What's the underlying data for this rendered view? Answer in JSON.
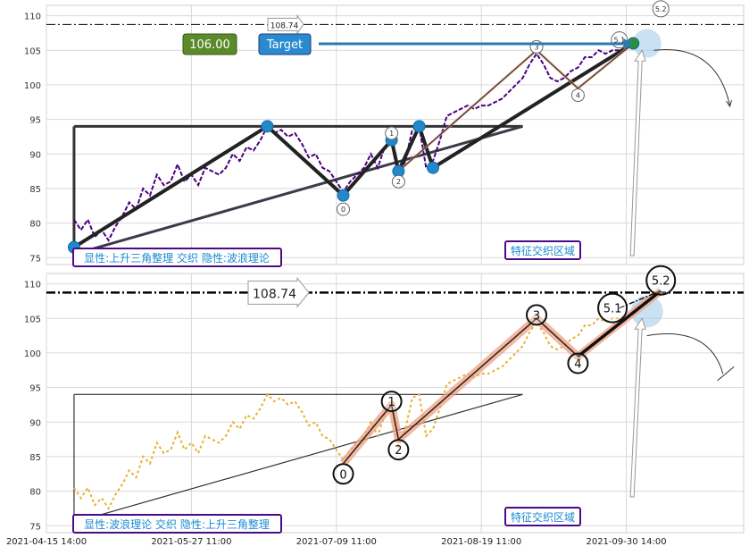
{
  "chart_data": [
    {
      "type": "line",
      "panel": "top",
      "ylim": [
        74,
        111.5
      ],
      "yticks": [
        75,
        80,
        85,
        90,
        95,
        100,
        105,
        110
      ],
      "grid": true,
      "price_color": "#4b0082",
      "price_series": [
        [
          0,
          80.5
        ],
        [
          1,
          79
        ],
        [
          2,
          80.5
        ],
        [
          3,
          78
        ],
        [
          4,
          79
        ],
        [
          5,
          77.5
        ],
        [
          6,
          79.5
        ],
        [
          7,
          81
        ],
        [
          8,
          83
        ],
        [
          9,
          82
        ],
        [
          10,
          85
        ],
        [
          11,
          84
        ],
        [
          12,
          87
        ],
        [
          13,
          85.5
        ],
        [
          14,
          86
        ],
        [
          15,
          88.5
        ],
        [
          16,
          86
        ],
        [
          17,
          87
        ],
        [
          18,
          85.5
        ],
        [
          19,
          88
        ],
        [
          20,
          87.5
        ],
        [
          21,
          87
        ],
        [
          22,
          88
        ],
        [
          23,
          90
        ],
        [
          24,
          89
        ],
        [
          25,
          91
        ],
        [
          26,
          90.5
        ],
        [
          27,
          92
        ],
        [
          28,
          94
        ],
        [
          29,
          93
        ],
        [
          30,
          93.5
        ],
        [
          31,
          92.5
        ],
        [
          32,
          93
        ],
        [
          33,
          91.5
        ],
        [
          34,
          89.5
        ],
        [
          35,
          90
        ],
        [
          36,
          88
        ],
        [
          37,
          87.5
        ],
        [
          38,
          86
        ],
        [
          39,
          84.5
        ],
        [
          40,
          86
        ],
        [
          41,
          87
        ],
        [
          42,
          88
        ],
        [
          43,
          90
        ],
        [
          44,
          88
        ],
        [
          45,
          91
        ],
        [
          46,
          92
        ],
        [
          47,
          86.5
        ],
        [
          48,
          89
        ],
        [
          49,
          93.5
        ],
        [
          50,
          94
        ],
        [
          51,
          88
        ],
        [
          52,
          89
        ],
        [
          53,
          92
        ],
        [
          54,
          95.5
        ],
        [
          55,
          96
        ],
        [
          56,
          96.5
        ],
        [
          57,
          97
        ],
        [
          58,
          96.5
        ],
        [
          59,
          97
        ],
        [
          60,
          97
        ],
        [
          61,
          97.5
        ],
        [
          62,
          98
        ],
        [
          63,
          99
        ],
        [
          64,
          100
        ],
        [
          65,
          101
        ],
        [
          66,
          103
        ],
        [
          67,
          104.5
        ],
        [
          68,
          103
        ],
        [
          69,
          101
        ],
        [
          70,
          100.5
        ],
        [
          71,
          101
        ],
        [
          72,
          102
        ],
        [
          73,
          102.5
        ],
        [
          74,
          104
        ],
        [
          75,
          104
        ],
        [
          76,
          105
        ],
        [
          77,
          104.5
        ],
        [
          78,
          105
        ],
        [
          79,
          105
        ]
      ],
      "pattern_points": [
        {
          "x": 0,
          "y": 76.5
        },
        {
          "x": 28,
          "y": 94
        },
        {
          "x": 39,
          "y": 84
        },
        {
          "x": 46,
          "y": 92
        },
        {
          "x": 47,
          "y": 87.5
        },
        {
          "x": 50,
          "y": 94
        },
        {
          "x": 52,
          "y": 88
        },
        {
          "x": 81,
          "y": 106
        }
      ],
      "wave_labels": [
        {
          "label": "0",
          "x": 39,
          "y": 82
        },
        {
          "label": "1",
          "x": 46,
          "y": 93
        },
        {
          "label": "2",
          "x": 47,
          "y": 86
        },
        {
          "label": "3",
          "x": 67,
          "y": 105.5
        },
        {
          "label": "4",
          "x": 73,
          "y": 98.5
        },
        {
          "label": "5.1",
          "x": 79,
          "y": 106.5
        },
        {
          "label": "5.2",
          "x": 85,
          "y": 111
        }
      ],
      "hline": 108.74,
      "hline_label": "108.74",
      "target_value": "106.00",
      "target_label": "Target",
      "caption": "显性:上升三角整理 交织 隐性:波浪理论",
      "zone_label": "特征交织区域"
    },
    {
      "type": "line",
      "panel": "bottom",
      "ylim": [
        74,
        111.5
      ],
      "yticks": [
        75,
        80,
        85,
        90,
        95,
        100,
        105,
        110
      ],
      "grid": true,
      "price_color": "#e8b030",
      "wave_points": [
        {
          "x": 39,
          "y": 84
        },
        {
          "x": 46,
          "y": 92.5
        },
        {
          "x": 47,
          "y": 87.5
        },
        {
          "x": 67,
          "y": 105
        },
        {
          "x": 73,
          "y": 99.5
        },
        {
          "x": 85,
          "y": 109
        }
      ],
      "wave_labels": [
        {
          "label": "0",
          "x": 39,
          "y": 82.5
        },
        {
          "label": "1",
          "x": 46,
          "y": 93
        },
        {
          "label": "2",
          "x": 47,
          "y": 86
        },
        {
          "label": "3",
          "x": 67,
          "y": 105.5
        },
        {
          "label": "4",
          "x": 73,
          "y": 98.5
        },
        {
          "label": "5.1",
          "x": 78,
          "y": 106.5
        },
        {
          "label": "5.2",
          "x": 85,
          "y": 110.5
        }
      ],
      "hline": 108.74,
      "hline_label": "108.74",
      "caption": "显性:波浪理论 交织 隐性:上升三角整理",
      "zone_label": "特征交织区域"
    }
  ],
  "x_axis": {
    "ticks": [
      {
        "x": -4,
        "label": "2021-04-15 14:00"
      },
      {
        "x": 17,
        "label": "2021-05-27 11:00"
      },
      {
        "x": 38,
        "label": "2021-07-09 11:00"
      },
      {
        "x": 59,
        "label": "2021-08-19 11:00"
      },
      {
        "x": 80,
        "label": "2021-09-30 14:00"
      }
    ],
    "range": [
      -4,
      97
    ]
  },
  "triangle": {
    "top_y": 94,
    "x_left": 0,
    "x_right": 65,
    "base_y0": 75.5,
    "base_y1": 94
  },
  "ui": {
    "top_caption": "显性:上升三角整理 交织 隐性:波浪理论",
    "bottom_caption": "显性:波浪理论 交织 隐性:上升三角整理",
    "zone_top": "特征交织区域",
    "zone_bottom": "特征交织区域",
    "target_value": "106.00",
    "target_label": "Target",
    "hline_label_top": "108.74",
    "hline_label_bottom": "108.74"
  }
}
